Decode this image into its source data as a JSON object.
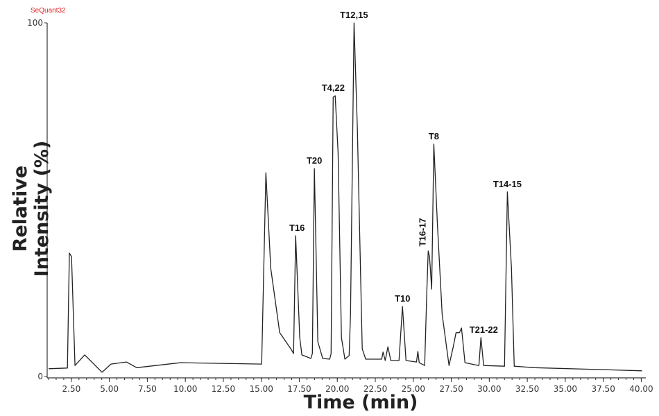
{
  "brand_label": "SeQuant32",
  "chart_data": {
    "type": "line",
    "title": "",
    "xlabel": "Time (min)",
    "ylabel": "Relative Intensity (%)",
    "xlim": [
      1.0,
      40.3
    ],
    "ylim": [
      0,
      100
    ],
    "grid": false,
    "x_ticks": [
      2.5,
      5,
      7.5,
      10,
      12.5,
      15,
      17.5,
      20,
      22.5,
      25,
      27.5,
      30,
      32.5,
      35,
      37.5,
      40
    ],
    "x_tick_labels": [
      "2.50",
      "5.00",
      "7.50",
      "10.00",
      "12.50",
      "15.00",
      "17.50",
      "20.00",
      "22.50",
      "25.00",
      "27.50",
      "30.00",
      "32.50",
      "35.00",
      "37.50",
      "40.00"
    ],
    "y_ticks": [
      0,
      50,
      100
    ],
    "y_tick_labels": [
      "0",
      "",
      "100"
    ],
    "line_color": "#222222",
    "series": [
      {
        "x": [
          1.0,
          2.24,
          2.37,
          2.51,
          2.74,
          3.38,
          4.52,
          5.11,
          6.12,
          6.8,
          9.68,
          15.02,
          15.3,
          15.62,
          16.21,
          16.99,
          17.12,
          17.26,
          17.53,
          17.67,
          18.26,
          18.36,
          18.49,
          18.72,
          19.04,
          19.5,
          19.59,
          19.73,
          19.86,
          20.05,
          20.27,
          20.5,
          20.78,
          20.87,
          21.1,
          21.32,
          21.64,
          21.87,
          22.92,
          23.01,
          23.15,
          23.33,
          23.52,
          24.06,
          24.29,
          24.52,
          25.21,
          25.3,
          25.39,
          25.75,
          25.89,
          25.98,
          26.07,
          26.21,
          26.35,
          26.58,
          26.9,
          27.35,
          27.63,
          27.81,
          28.04,
          28.17,
          28.4,
          29.32,
          29.45,
          29.63,
          31.0,
          31.19,
          31.46,
          31.64,
          32.97,
          40.05
        ],
        "y": [
          2.2,
          2.4,
          34.9,
          33.9,
          3.1,
          6.1,
          1.2,
          3.5,
          4.1,
          2.5,
          3.9,
          3.5,
          57.6,
          30.6,
          12.4,
          7.5,
          6.5,
          39.8,
          11.0,
          6.1,
          5.1,
          6.5,
          58.8,
          9.8,
          5.1,
          4.9,
          6.5,
          79.0,
          79.4,
          63.3,
          11.0,
          4.9,
          5.9,
          17.6,
          100,
          69.8,
          7.8,
          4.9,
          4.9,
          6.9,
          4.5,
          8.4,
          4.5,
          4.5,
          19.8,
          4.5,
          4.1,
          7.1,
          3.9,
          3.1,
          24.1,
          35.5,
          33.9,
          24.7,
          65.7,
          43.7,
          17.6,
          3.1,
          8.4,
          12.4,
          12.4,
          13.7,
          3.9,
          3.1,
          11.0,
          3.1,
          2.9,
          52.2,
          30.6,
          2.9,
          2.5,
          1.6
        ]
      }
    ],
    "annotations": [
      {
        "text": "T16",
        "x": 17.26,
        "y": 39.8
      },
      {
        "text": "T20",
        "x": 18.49,
        "y": 58.8
      },
      {
        "text": "T4,22",
        "x": 19.73,
        "y": 79.4
      },
      {
        "text": "T12,15",
        "x": 21.1,
        "y": 100
      },
      {
        "text": "T10",
        "x": 24.29,
        "y": 19.8
      },
      {
        "text": "T16-17",
        "x": 25.98,
        "y": 35.5,
        "rotated": true
      },
      {
        "text": "T8",
        "x": 26.35,
        "y": 65.7
      },
      {
        "text": "T21-22",
        "x": 29.45,
        "y": 11.0
      },
      {
        "text": "T14-15",
        "x": 31.19,
        "y": 52.2
      }
    ]
  }
}
